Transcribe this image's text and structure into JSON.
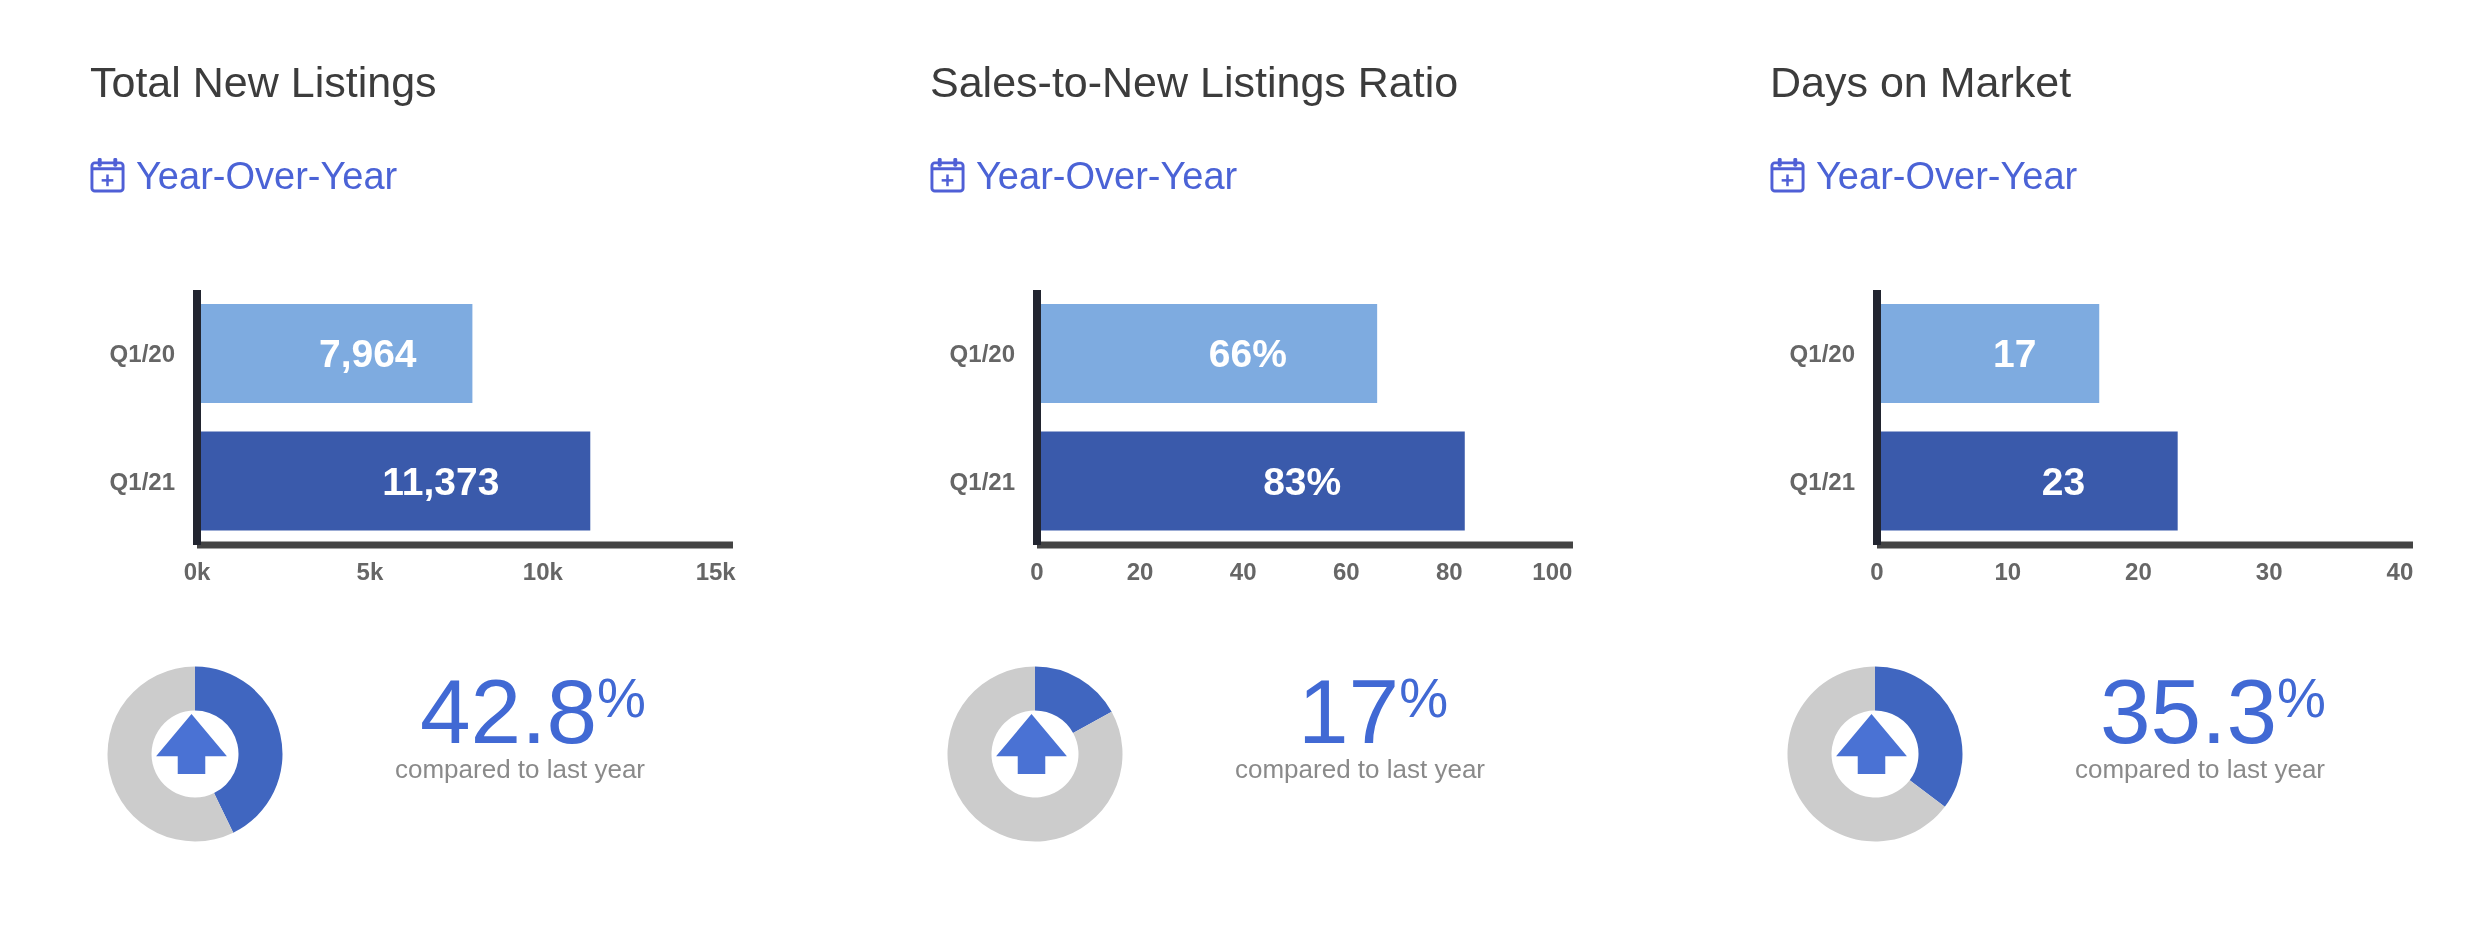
{
  "chart_data": [
    {
      "type": "bar",
      "title": "Total New Listings",
      "subtitle": "Year-Over-Year",
      "orientation": "horizontal",
      "categories": [
        "Q1/20",
        "Q1/21"
      ],
      "values": [
        7964,
        11373
      ],
      "colors": [
        "#7eabe0",
        "#3a5aab"
      ],
      "value_labels": [
        "7,964",
        "11,373"
      ],
      "xlim": [
        0,
        15500
      ],
      "xticks": [
        {
          "value": 0,
          "label": "0k"
        },
        {
          "value": 5000,
          "label": "5k"
        },
        {
          "value": 10000,
          "label": "10k"
        },
        {
          "value": 15000,
          "label": "15k"
        }
      ]
    },
    {
      "type": "donut",
      "categories": [
        null,
        null
      ],
      "values": [
        42.8,
        57.2
      ],
      "colors": [
        "#4066c0",
        "#cccccc"
      ],
      "value_labels": [
        "42.8$^{%}$",
        null
      ],
      "annotations": [
        "compared to last year"
      ]
    },
    {
      "type": "bar",
      "title": "Sales-to-New Listings Ratio",
      "subtitle": "Year-Over-Year",
      "orientation": "horizontal",
      "categories": [
        "Q1/20",
        "Q1/21"
      ],
      "values": [
        66,
        83
      ],
      "colors": [
        "#7eabe0",
        "#3a5aab"
      ],
      "value_labels": [
        "66%",
        "83%"
      ],
      "xlim": [
        0,
        104
      ],
      "xticks": [
        0,
        20,
        40,
        60,
        80,
        100
      ]
    },
    {
      "type": "donut",
      "categories": [
        null,
        null
      ],
      "values": [
        17,
        83
      ],
      "colors": [
        "#4066c0",
        "#cccccc"
      ],
      "value_labels": [
        "17$^{%}$",
        null
      ],
      "annotations": [
        "compared to last year"
      ]
    },
    {
      "type": "bar",
      "title": "Days on Market",
      "subtitle": "Year-Over-Year",
      "orientation": "horizontal",
      "categories": [
        "Q1/20",
        "Q1/21"
      ],
      "values": [
        17,
        23
      ],
      "colors": [
        "#7eabe0",
        "#3a5aab"
      ],
      "value_labels": [
        "17",
        "23"
      ],
      "xlim": [
        0,
        41
      ],
      "xticks": [
        0,
        10,
        20,
        30,
        40
      ]
    },
    {
      "type": "donut",
      "categories": [
        null,
        null
      ],
      "values": [
        35.3,
        64.7
      ],
      "colors": [
        "#4066c0",
        "#cccccc"
      ],
      "value_labels": [
        "35.3$^{%}$",
        null
      ],
      "annotations": [
        "compared to last year"
      ]
    }
  ]
}
